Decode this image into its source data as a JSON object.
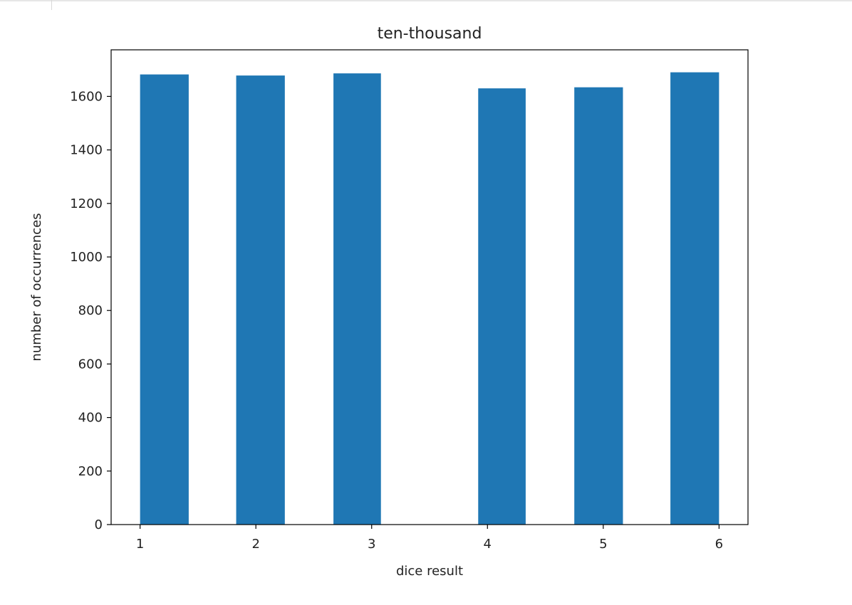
{
  "chart_data": {
    "type": "bar",
    "title": "ten-thousand",
    "xlabel": "dice result",
    "ylabel": "number of occurrences",
    "bars": [
      {
        "x_start": 1.0,
        "x_end": 1.42,
        "value": 1682
      },
      {
        "x_start": 1.83,
        "x_end": 2.25,
        "value": 1678
      },
      {
        "x_start": 2.67,
        "x_end": 3.08,
        "value": 1686
      },
      {
        "x_start": 3.92,
        "x_end": 4.33,
        "value": 1630
      },
      {
        "x_start": 4.75,
        "x_end": 5.17,
        "value": 1634
      },
      {
        "x_start": 5.58,
        "x_end": 6.0,
        "value": 1690
      }
    ],
    "xticks": [
      1,
      2,
      3,
      4,
      5,
      6
    ],
    "yticks": [
      0,
      200,
      400,
      600,
      800,
      1000,
      1200,
      1400,
      1600
    ],
    "xlim": [
      0.75,
      6.25
    ],
    "ylim": [
      0,
      1774
    ],
    "grid": false,
    "legend": "none",
    "bar_color": "#1f77b4"
  }
}
